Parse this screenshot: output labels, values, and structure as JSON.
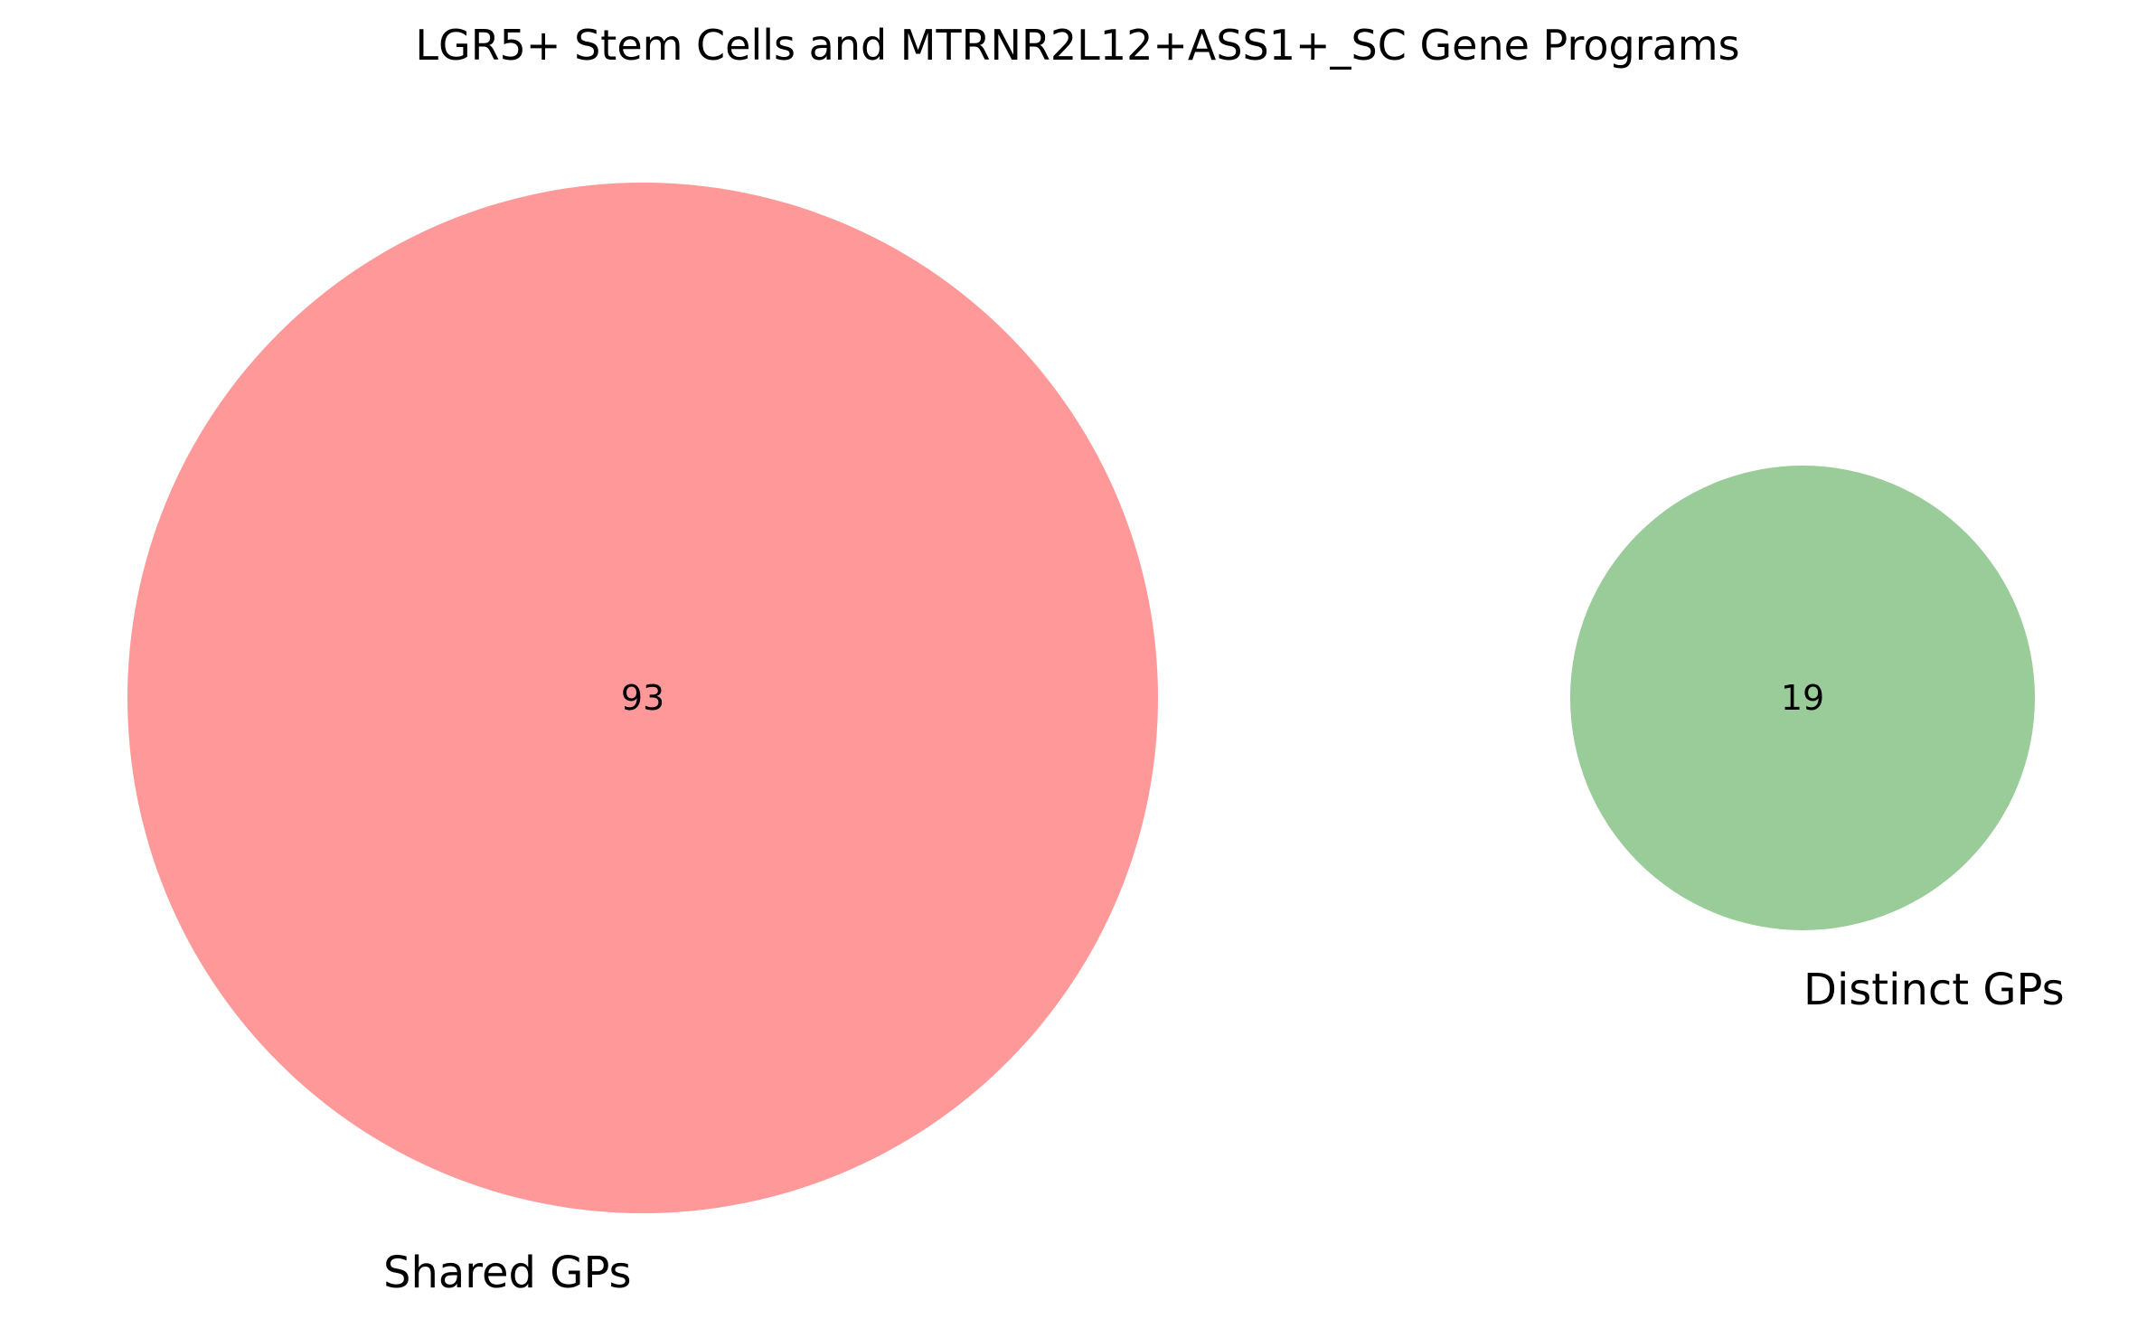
{
  "chart_data": {
    "type": "venn",
    "title": "LGR5+ Stem Cells and MTRNR2L12+ASS1+_SC Gene Programs",
    "sets": [
      {
        "name": "Shared GPs",
        "count": 93,
        "color": "#ff9999"
      },
      {
        "name": "Distinct GPs",
        "count": 19,
        "color": "#99cc99"
      }
    ],
    "overlap": 0
  }
}
